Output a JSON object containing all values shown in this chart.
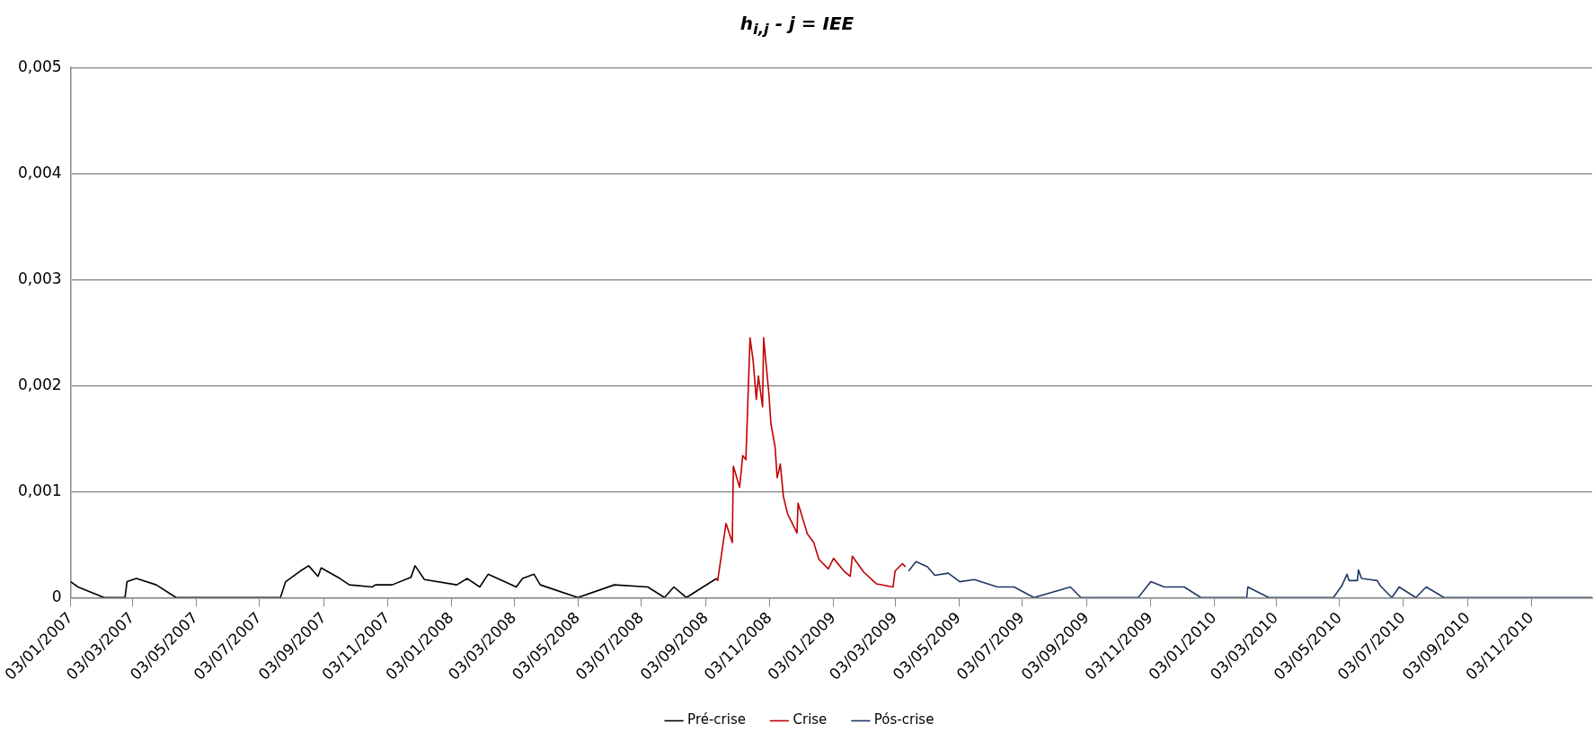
{
  "chart_data": {
    "type": "line",
    "title": "h$_{i,j}$ - j = IEE",
    "xlim": [
      "2007-01-03",
      "2010-12-31"
    ],
    "xticks": [
      {
        "value": "2007-01-03",
        "label": "03/01/2007"
      },
      {
        "value": "2007-03-03",
        "label": "03/03/2007"
      },
      {
        "value": "2007-05-03",
        "label": "03/05/2007"
      },
      {
        "value": "2007-07-03",
        "label": "03/07/2007"
      },
      {
        "value": "2007-09-03",
        "label": "03/09/2007"
      },
      {
        "value": "2007-11-03",
        "label": "03/11/2007"
      },
      {
        "value": "2008-01-03",
        "label": "03/01/2008"
      },
      {
        "value": "2008-03-03",
        "label": "03/03/2008"
      },
      {
        "value": "2008-05-03",
        "label": "03/05/2008"
      },
      {
        "value": "2008-07-03",
        "label": "03/07/2008"
      },
      {
        "value": "2008-09-03",
        "label": "03/09/2008"
      },
      {
        "value": "2008-11-03",
        "label": "03/11/2008"
      },
      {
        "value": "2009-01-03",
        "label": "03/01/2009"
      },
      {
        "value": "2009-03-03",
        "label": "03/03/2009"
      },
      {
        "value": "2009-05-03",
        "label": "03/05/2009"
      },
      {
        "value": "2009-07-03",
        "label": "03/07/2009"
      },
      {
        "value": "2009-09-03",
        "label": "03/09/2009"
      },
      {
        "value": "2009-11-03",
        "label": "03/11/2009"
      },
      {
        "value": "2010-01-03",
        "label": "03/01/2010"
      },
      {
        "value": "2010-03-03",
        "label": "03/03/2010"
      },
      {
        "value": "2010-05-03",
        "label": "03/05/2010"
      },
      {
        "value": "2010-07-03",
        "label": "03/07/2010"
      },
      {
        "value": "2010-09-03",
        "label": "03/09/2010"
      },
      {
        "value": "2010-11-03",
        "label": "03/11/2010"
      }
    ],
    "ylim": [
      0,
      0.005
    ],
    "yticks": [
      0,
      {
        "value": 0.001,
        "label": "0,001"
      },
      {
        "value": 0.002,
        "label": "0,002"
      },
      {
        "value": 0.003,
        "label": "0,003"
      },
      {
        "value": 0.004,
        "label": "0,004"
      },
      {
        "value": 0.005,
        "label": "0,005"
      }
    ],
    "grid": "y",
    "legend": "bottom",
    "marker": "none",
    "line_style": "solid",
    "series": [
      {
        "name": "Pré-crise",
        "color": "#000000",
        "x": [
          "2007-01-03",
          "2007-01-10",
          "2007-02-04",
          "2007-02-24",
          "2007-02-26",
          "2007-03-07",
          "2007-03-26",
          "2007-04-14",
          "2007-05-06",
          "2007-06-13",
          "2007-07-23",
          "2007-07-28",
          "2007-08-11",
          "2007-08-19",
          "2007-08-28",
          "2007-08-31",
          "2007-09-18",
          "2007-09-27",
          "2007-10-19",
          "2007-10-22",
          "2007-11-07",
          "2007-11-25",
          "2007-11-29",
          "2007-12-08",
          "2008-01-08",
          "2008-01-18",
          "2008-01-30",
          "2008-02-07",
          "2008-03-05",
          "2008-03-11",
          "2008-03-22",
          "2008-03-28",
          "2008-05-03",
          "2008-06-07",
          "2008-07-09",
          "2008-07-25",
          "2008-08-03",
          "2008-08-15",
          "2008-08-31",
          "2008-09-13"
        ],
        "values": [
          0.00015,
          0.0001,
          0,
          0,
          0.00015,
          0.00018,
          0.00012,
          0,
          0,
          0,
          0,
          0.00015,
          0.00025,
          0.0003,
          0.0002,
          0.00028,
          0.00018,
          0.00012,
          0.0001,
          0.00012,
          0.00012,
          0.00019,
          0.0003,
          0.00017,
          0.00012,
          0.00018,
          0.0001,
          0.00022,
          0.0001,
          0.00018,
          0.00022,
          0.00012,
          0,
          0.00012,
          0.0001,
          0,
          0.0001,
          0,
          0.0001,
          0.00018
        ]
      },
      {
        "name": "Crise",
        "color": "#c00000",
        "x": [
          "2008-09-13",
          "2008-09-14",
          "2008-09-22",
          "2008-09-28",
          "2008-09-29",
          "2008-10-05",
          "2008-10-08",
          "2008-10-11",
          "2008-10-15",
          "2008-10-18",
          "2008-10-21",
          "2008-10-23",
          "2008-10-27",
          "2008-10-28",
          "2008-11-02",
          "2008-11-04",
          "2008-11-08",
          "2008-11-10",
          "2008-11-13",
          "2008-11-16",
          "2008-11-20",
          "2008-11-29",
          "2008-11-30",
          "2008-12-09",
          "2008-12-15",
          "2008-12-20",
          "2008-12-29",
          "2009-01-03",
          "2009-01-13",
          "2009-01-19",
          "2009-01-21",
          "2009-02-01",
          "2009-02-13",
          "2009-03-01",
          "2009-03-03",
          "2009-03-10",
          "2009-03-13"
        ],
        "values": [
          0.00018,
          0.00016,
          0.0007,
          0.00052,
          0.00124,
          0.00104,
          0.00134,
          0.0013,
          0.00245,
          0.00223,
          0.00187,
          0.00209,
          0.0018,
          0.00245,
          0.00193,
          0.00164,
          0.00142,
          0.00113,
          0.00126,
          0.00095,
          0.00079,
          0.00061,
          0.00089,
          0.0006,
          0.00052,
          0.00036,
          0.00027,
          0.00037,
          0.00025,
          0.0002,
          0.00039,
          0.00024,
          0.00013,
          0.0001,
          0.00025,
          0.00032,
          0.00029
        ]
      },
      {
        "name": "Pós-crise",
        "color": "#1f3864",
        "x": [
          "2009-03-16",
          "2009-03-23",
          "2009-04-03",
          "2009-04-10",
          "2009-04-23",
          "2009-05-04",
          "2009-05-18",
          "2009-06-09",
          "2009-06-25",
          "2009-07-14",
          "2009-08-18",
          "2009-08-28",
          "2009-09-16",
          "2009-10-05",
          "2009-10-22",
          "2009-11-03",
          "2009-11-16",
          "2009-12-05",
          "2009-12-21",
          "2010-01-19",
          "2010-01-21",
          "2010-02-03",
          "2010-02-04",
          "2010-02-24",
          "2010-03-10",
          "2010-04-27",
          "2010-05-05",
          "2010-05-10",
          "2010-05-12",
          "2010-05-20",
          "2010-05-21",
          "2010-05-24",
          "2010-06-08",
          "2010-06-11",
          "2010-06-22",
          "2010-06-29",
          "2010-07-15",
          "2010-07-25",
          "2010-08-11",
          "2010-09-01",
          "2010-09-27",
          "2010-10-06",
          "2010-11-18",
          "2010-11-28",
          "2010-12-17",
          "2010-12-31"
        ],
        "values": [
          0.00025,
          0.00034,
          0.00029,
          0.00021,
          0.00023,
          0.00015,
          0.00017,
          0.0001,
          0.0001,
          0,
          0.0001,
          0,
          0,
          0,
          0,
          0.00015,
          0.0001,
          0.0001,
          0,
          0,
          0,
          0,
          0.0001,
          0,
          0,
          0,
          0.00011,
          0.00022,
          0.00016,
          0.00016,
          0.00026,
          0.00018,
          0.00016,
          0.00011,
          0,
          0.0001,
          0,
          0.0001,
          0,
          0,
          0,
          0,
          0,
          0,
          0,
          0
        ]
      }
    ]
  }
}
